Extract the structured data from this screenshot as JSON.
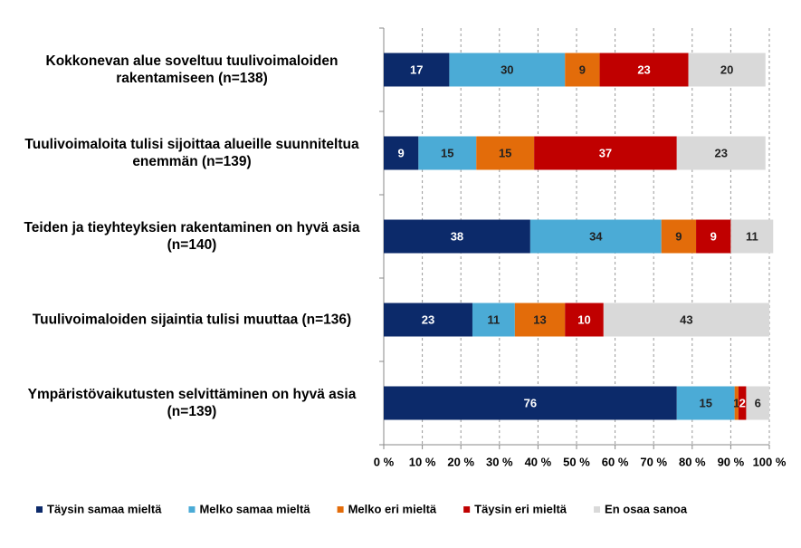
{
  "chart_data": {
    "type": "stacked_barh",
    "categories": [
      "Kokkonevan alue soveltuu tuulivoimaloiden rakentamiseen (n=138)",
      "Tuulivoimaloita tulisi sijoittaa alueille suunniteltua enemmän (n=139)",
      "Teiden ja tieyhteyksien rakentaminen on hyvä asia  (n=140)",
      "Tuulivoimaloiden sijaintia tulisi muuttaa (n=136)",
      "Ympäristövaikutusten selvittäminen on hyvä asia (n=139)"
    ],
    "series": [
      {
        "name": "Täysin samaa mieltä",
        "color": "#0c2a6a",
        "values": [
          17,
          9,
          38,
          23,
          76
        ]
      },
      {
        "name": "Melko samaa mieltä",
        "color": "#4babd6",
        "values": [
          30,
          15,
          34,
          11,
          15
        ]
      },
      {
        "name": "Melko eri mieltä",
        "color": "#e36c0a",
        "values": [
          9,
          15,
          9,
          13,
          1
        ]
      },
      {
        "name": "Täysin eri mieltä",
        "color": "#c00000",
        "values": [
          23,
          37,
          9,
          10,
          2
        ]
      },
      {
        "name": "En osaa sanoa",
        "color": "#d9d9d9",
        "values": [
          20,
          23,
          11,
          43,
          6
        ]
      }
    ],
    "xlim": [
      0,
      100
    ],
    "xticks": [
      {
        "value": 0,
        "label": "0 %"
      },
      {
        "value": 10,
        "label": "10 %"
      },
      {
        "value": 20,
        "label": "20 %"
      },
      {
        "value": 30,
        "label": "30 %"
      },
      {
        "value": 40,
        "label": "40 %"
      },
      {
        "value": 50,
        "label": "50 %"
      },
      {
        "value": 60,
        "label": "60 %"
      },
      {
        "value": 70,
        "label": "70 %"
      },
      {
        "value": 80,
        "label": "80 %"
      },
      {
        "value": 90,
        "label": "90 %"
      },
      {
        "value": 100,
        "label": "100 %"
      }
    ],
    "grid": true,
    "legend": "bottom"
  }
}
